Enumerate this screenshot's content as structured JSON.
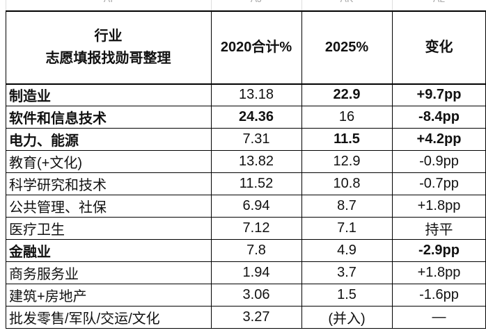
{
  "column_letters": [
    "AI",
    "AJ",
    "AK",
    "AL"
  ],
  "table": {
    "header": [
      "行业\n志愿填报找勋哥整理",
      "2020合计%",
      "2025%",
      "变化"
    ],
    "rows": [
      {
        "cells": [
          "制造业",
          "13.18",
          "22.9",
          "+9.7pp"
        ],
        "bold": [
          0,
          2,
          3
        ]
      },
      {
        "cells": [
          "软件和信息技术",
          "24.36",
          "16",
          "-8.4pp"
        ],
        "bold": [
          0,
          1,
          3
        ]
      },
      {
        "cells": [
          "电力、能源",
          "7.31",
          "11.5",
          "+4.2pp"
        ],
        "bold": [
          0,
          2,
          3
        ]
      },
      {
        "cells": [
          "教育(+文化)",
          "13.82",
          "12.9",
          "-0.9pp"
        ],
        "bold": []
      },
      {
        "cells": [
          "科学研究和技术",
          "11.52",
          "10.8",
          "-0.7pp"
        ],
        "bold": []
      },
      {
        "cells": [
          "公共管理、社保",
          "6.94",
          "8.7",
          "+1.8pp"
        ],
        "bold": []
      },
      {
        "cells": [
          "医疗卫生",
          "7.12",
          "7.1",
          "持平"
        ],
        "bold": []
      },
      {
        "cells": [
          "金融业",
          "7.8",
          "4.9",
          "-2.9pp"
        ],
        "bold": [
          0,
          3
        ]
      },
      {
        "cells": [
          "商务服务业",
          "1.94",
          "3.7",
          "+1.8pp"
        ],
        "bold": []
      },
      {
        "cells": [
          "建筑+房地产",
          "3.06",
          "1.5",
          "-1.6pp"
        ],
        "bold": []
      },
      {
        "cells": [
          "批发零售/军队/交运/文化",
          "3.27",
          "(并入)",
          "—"
        ],
        "bold": []
      }
    ]
  }
}
